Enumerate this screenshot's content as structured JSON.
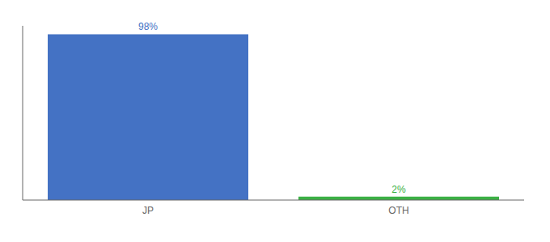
{
  "chart_data": {
    "type": "bar",
    "categories": [
      "JP",
      "OTH"
    ],
    "values": [
      98,
      2
    ],
    "value_labels": [
      "98%",
      "2%"
    ],
    "colors": [
      "#4472c4",
      "#3cb045"
    ],
    "ylim": [
      0,
      103
    ],
    "data_labels": true,
    "tick_labels": "x"
  }
}
